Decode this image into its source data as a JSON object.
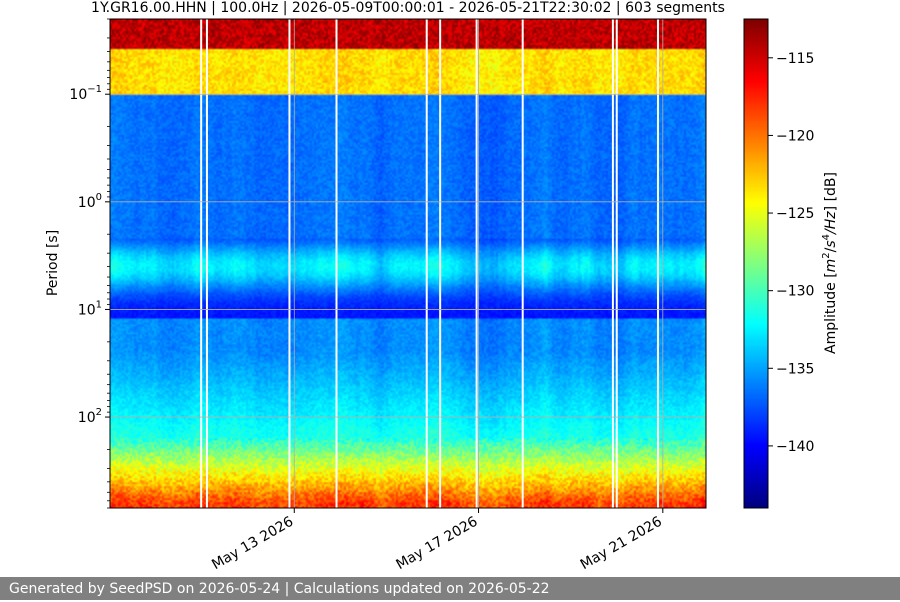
{
  "chart_data": {
    "type": "heatmap",
    "title": "1Y.GR16.00.HHN | 100.0Hz | 2026-05-09T00:00:01 - 2026-05-21T22:30:02 | 603 segments",
    "ylabel": "Period [s]",
    "y_scale": "log",
    "y_inverted": true,
    "ylim": [
      0.02,
      700
    ],
    "x_range": [
      "2026-05-09T00:00:01",
      "2026-05-21T22:30:02"
    ],
    "x_ticks": [
      "May 13 2026",
      "May 17 2026",
      "May 21 2026"
    ],
    "x_tick_dates": [
      "2026-05-13",
      "2026-05-17",
      "2026-05-21"
    ],
    "y_ticks": [
      {
        "base": "10",
        "exp": "−1",
        "value": 0.1
      },
      {
        "base": "10",
        "exp": "0",
        "value": 1
      },
      {
        "base": "10",
        "exp": "1",
        "value": 10
      },
      {
        "base": "10",
        "exp": "2",
        "value": 100
      }
    ],
    "grid": true,
    "colormap": "jet",
    "colorbar": {
      "label": "Amplitude [m²/s⁴/Hz] [dB]",
      "label_parts": [
        "Amplitude [",
        "m",
        "2",
        "/",
        "s",
        "4",
        "/",
        "Hz",
        "] [dB]"
      ],
      "range": [
        -144,
        -112.5
      ],
      "ticks": [
        -115,
        -120,
        -125,
        -130,
        -135,
        -140
      ],
      "tick_labels": [
        "−115",
        "−120",
        "−125",
        "−130",
        "−135",
        "−140"
      ]
    },
    "segments": 603,
    "gap_dates": [
      "2026-05-10T23:30",
      "2026-05-11T02:30",
      "2026-05-12T21:30",
      "2026-05-13T22:00",
      "2026-05-15T21:00",
      "2026-05-16T04:00",
      "2026-05-16T23:00",
      "2026-05-17T23:00",
      "2026-05-19T22:00",
      "2026-05-20T00:00",
      "2026-05-20T21:30"
    ]
  },
  "footer": {
    "text": "Generated by SeedPSD on 2026-05-24 | Calculations updated on 2026-05-22"
  }
}
